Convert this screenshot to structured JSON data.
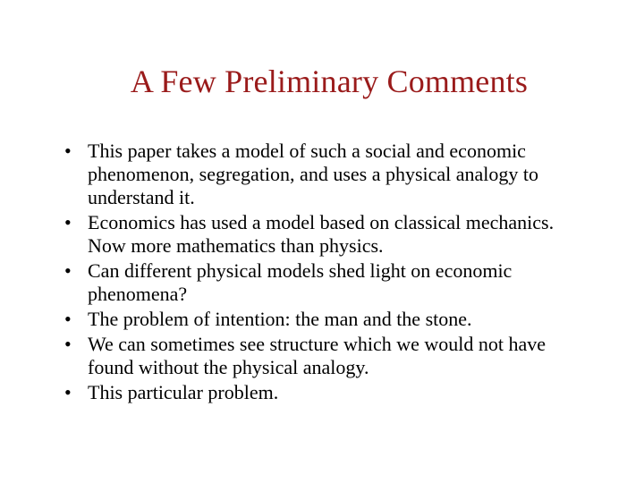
{
  "title": {
    "text": "A Few Preliminary Comments",
    "color": "#9a1b1b",
    "fontsize": 36
  },
  "body": {
    "color": "#000000",
    "fontsize": 22,
    "bullets": [
      "This paper takes a model of such a social and economic phenomenon, segregation, and uses a physical analogy  to understand it.",
      "Economics has used a model based on classical mechanics. Now more mathematics than physics.",
      "Can different physical models shed light on economic phenomena?",
      "The problem of intention: the man and the stone.",
      "We can sometimes see structure which we would not have found without the physical analogy.",
      "This particular problem."
    ]
  },
  "background_color": "#ffffff"
}
